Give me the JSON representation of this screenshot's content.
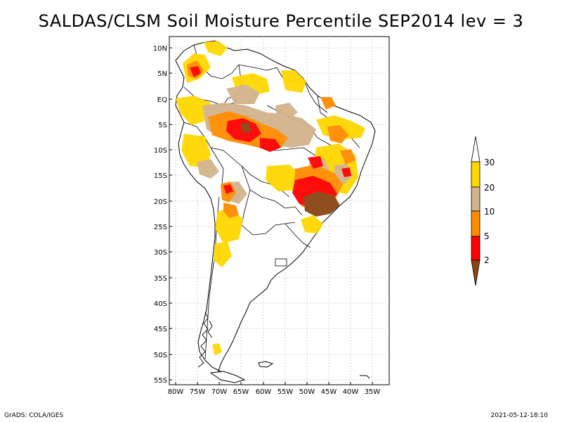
{
  "title": "SALDAS/CLSM Soil Moisture Percentile SEP2014 lev = 3",
  "lat_labels": [
    "10N",
    "5N",
    "EQ",
    "5S",
    "10S",
    "15S",
    "20S",
    "25S",
    "30S",
    "35S",
    "40S",
    "45S",
    "50S",
    "55S"
  ],
  "lon_labels": [
    "80W",
    "75W",
    "70W",
    "65W",
    "60W",
    "55W",
    "50W",
    "45W",
    "40W",
    "35W"
  ],
  "legend": {
    "labels": [
      "2",
      "5",
      "10",
      "20",
      "30"
    ],
    "colors": {
      "lt2": "#8b4513",
      "2_5": "#ff0000",
      "5_10": "#ff8c00",
      "10_20": "#d2b48c",
      "20_30": "#ffd700",
      "gt30": "#ffffff"
    }
  },
  "footer": {
    "left": "GrADS: COLA/IGES",
    "right": "2021-05-12-18:10"
  }
}
